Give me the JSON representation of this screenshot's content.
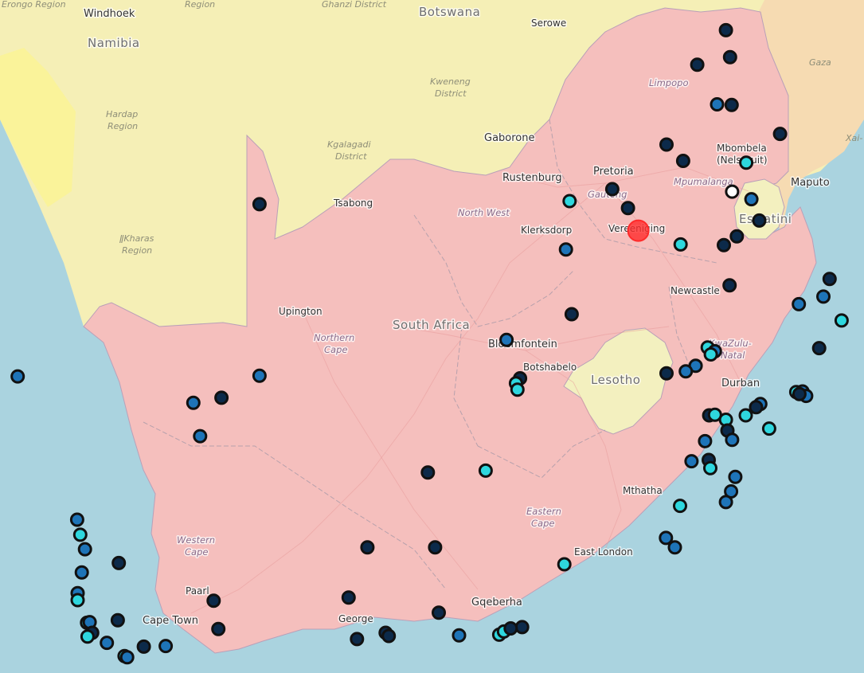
{
  "colors": {
    "sea": "#aad3df",
    "neighbor": "#f5efb6",
    "south_africa": "#f5bfbd",
    "lesotho": "#f3f0bf",
    "mozambique": "#f6dbb2",
    "desert": "#faf39a",
    "station_dark": "#0c2a4a",
    "station_blue": "#1e74b8",
    "station_cyan": "#2ed7de",
    "station_white": "#ffffff",
    "selected": "#ff2a2a"
  },
  "countries": {
    "south_africa": "South Africa",
    "botswana": "Botswana",
    "namibia": "Namibia",
    "lesotho": "Lesotho",
    "eswatini": "Eswatini"
  },
  "regions": {
    "erongo": "Erongo Region",
    "region_top": "Region",
    "ghanzi": "Ghanzi District",
    "kweneng_1": "Kweneng",
    "kweneng_2": "District",
    "hardap_1": "Hardap",
    "hardap_2": "Region",
    "kgalagadi_1": "Kgalagadi",
    "kgalagadi_2": "District",
    "karas_1": "ǁKharas",
    "karas_2": "Region",
    "gaza": "Gaza",
    "xai": "Xai-",
    "limpopo": "Limpopo",
    "mpumalanga": "Mpumalanga",
    "gauteng": "Gauteng",
    "north_west": "North West",
    "northern_cape_1": "Northern",
    "northern_cape_2": "Cape",
    "kzn_1": "KwaZulu-",
    "kzn_2": "Natal",
    "eastern_cape_1": "Eastern",
    "eastern_cape_2": "Cape",
    "western_cape_1": "Western",
    "western_cape_2": "Cape"
  },
  "cities": {
    "windhoek": "Windhoek",
    "namibia_label": "Namibia",
    "serowe": "Serowe",
    "gaborone": "Gaborone",
    "tsabong": "Tsabong",
    "rustenburg": "Rustenburg",
    "pretoria": "Pretoria",
    "mbombela_1": "Mbombela",
    "mbombela_2": "(Nelspruit)",
    "maputo": "Maputo",
    "klerksdorp": "Klerksdorp",
    "vereeniging": "Vereeniging",
    "newcastle": "Newcastle",
    "upington": "Upington",
    "bloemfontein": "Bloemfontein",
    "botshabelo": "Botshabelo",
    "durban": "Durban",
    "mthatha": "Mthatha",
    "east_london": "East London",
    "gqeberha": "Gqeberha",
    "george": "George",
    "paarl": "Paarl",
    "cape_town": "Cape Town"
  },
  "stations": [
    {
      "lon": 30.33,
      "lat": -22.43,
      "type": "dark"
    },
    {
      "lon": 29.78,
      "lat": -22.98,
      "type": "dark"
    },
    {
      "lon": 30.41,
      "lat": -22.86,
      "type": "dark"
    },
    {
      "lon": 30.16,
      "lat": -23.61,
      "type": "blue"
    },
    {
      "lon": 30.44,
      "lat": -23.62,
      "type": "dark"
    },
    {
      "lon": 29.19,
      "lat": -24.25,
      "type": "dark"
    },
    {
      "lon": 29.51,
      "lat": -24.51,
      "type": "dark"
    },
    {
      "lon": 31.37,
      "lat": -24.08,
      "type": "dark"
    },
    {
      "lon": 30.72,
      "lat": -24.54,
      "type": "cyan"
    },
    {
      "lon": 28.15,
      "lat": -24.96,
      "type": "dark"
    },
    {
      "lon": 30.45,
      "lat": -25.0,
      "type": "white"
    },
    {
      "lon": 30.82,
      "lat": -25.12,
      "type": "blue"
    },
    {
      "lon": 27.33,
      "lat": -25.15,
      "type": "cyan"
    },
    {
      "lon": 28.45,
      "lat": -25.26,
      "type": "dark"
    },
    {
      "lon": 30.97,
      "lat": -25.46,
      "type": "dark"
    },
    {
      "lon": 21.38,
      "lat": -25.2,
      "type": "dark"
    },
    {
      "lon": 28.65,
      "lat": -25.62,
      "type": "selected"
    },
    {
      "lon": 29.46,
      "lat": -25.84,
      "type": "cyan"
    },
    {
      "lon": 30.54,
      "lat": -25.71,
      "type": "dark"
    },
    {
      "lon": 30.29,
      "lat": -25.85,
      "type": "dark"
    },
    {
      "lon": 27.26,
      "lat": -25.92,
      "type": "blue"
    },
    {
      "lon": 32.32,
      "lat": -26.39,
      "type": "dark"
    },
    {
      "lon": 30.4,
      "lat": -26.49,
      "type": "dark"
    },
    {
      "lon": 32.2,
      "lat": -26.67,
      "type": "blue"
    },
    {
      "lon": 31.73,
      "lat": -26.79,
      "type": "blue"
    },
    {
      "lon": 27.37,
      "lat": -26.95,
      "type": "dark"
    },
    {
      "lon": 32.55,
      "lat": -27.05,
      "type": "cyan"
    },
    {
      "lon": 26.12,
      "lat": -27.36,
      "type": "blue"
    },
    {
      "lon": 29.98,
      "lat": -27.48,
      "type": "cyan"
    },
    {
      "lon": 30.12,
      "lat": -27.54,
      "type": "blue"
    },
    {
      "lon": 30.04,
      "lat": -27.59,
      "type": "cyan"
    },
    {
      "lon": 32.12,
      "lat": -27.49,
      "type": "dark"
    },
    {
      "lon": 29.75,
      "lat": -27.77,
      "type": "blue"
    },
    {
      "lon": 29.56,
      "lat": -27.86,
      "type": "blue"
    },
    {
      "lon": 29.19,
      "lat": -27.89,
      "type": "dark"
    },
    {
      "lon": 16.74,
      "lat": -27.94,
      "type": "blue"
    },
    {
      "lon": 21.38,
      "lat": -27.93,
      "type": "blue"
    },
    {
      "lon": 26.38,
      "lat": -27.97,
      "type": "dark"
    },
    {
      "lon": 26.3,
      "lat": -28.05,
      "type": "cyan"
    },
    {
      "lon": 26.33,
      "lat": -28.15,
      "type": "cyan"
    },
    {
      "lon": 31.68,
      "lat": -28.19,
      "type": "cyan"
    },
    {
      "lon": 31.8,
      "lat": -28.18,
      "type": "blue"
    },
    {
      "lon": 31.87,
      "lat": -28.25,
      "type": "blue"
    },
    {
      "lon": 31.74,
      "lat": -28.22,
      "type": "dark"
    },
    {
      "lon": 20.65,
      "lat": -28.28,
      "type": "dark"
    },
    {
      "lon": 20.11,
      "lat": -28.36,
      "type": "blue"
    },
    {
      "lon": 30.99,
      "lat": -28.38,
      "type": "blue"
    },
    {
      "lon": 30.91,
      "lat": -28.43,
      "type": "dark"
    },
    {
      "lon": 30.01,
      "lat": -28.56,
      "type": "dark"
    },
    {
      "lon": 30.12,
      "lat": -28.55,
      "type": "cyan"
    },
    {
      "lon": 30.33,
      "lat": -28.63,
      "type": "cyan"
    },
    {
      "lon": 30.71,
      "lat": -28.56,
      "type": "cyan"
    },
    {
      "lon": 30.36,
      "lat": -28.8,
      "type": "dark"
    },
    {
      "lon": 31.16,
      "lat": -28.77,
      "type": "cyan"
    },
    {
      "lon": 20.24,
      "lat": -28.89,
      "type": "blue"
    },
    {
      "lon": 30.45,
      "lat": -28.95,
      "type": "blue"
    },
    {
      "lon": 29.93,
      "lat": -28.97,
      "type": "blue"
    },
    {
      "lon": 29.67,
      "lat": -29.29,
      "type": "blue"
    },
    {
      "lon": 30.0,
      "lat": -29.27,
      "type": "dark"
    },
    {
      "lon": 30.03,
      "lat": -29.4,
      "type": "cyan"
    },
    {
      "lon": 24.61,
      "lat": -29.47,
      "type": "dark"
    },
    {
      "lon": 25.72,
      "lat": -29.44,
      "type": "cyan"
    },
    {
      "lon": 30.51,
      "lat": -29.54,
      "type": "blue"
    },
    {
      "lon": 30.43,
      "lat": -29.77,
      "type": "blue"
    },
    {
      "lon": 30.33,
      "lat": -29.94,
      "type": "blue"
    },
    {
      "lon": 29.45,
      "lat": -30.0,
      "type": "cyan"
    },
    {
      "lon": 17.88,
      "lat": -30.22,
      "type": "blue"
    },
    {
      "lon": 17.94,
      "lat": -30.46,
      "type": "cyan"
    },
    {
      "lon": 29.18,
      "lat": -30.51,
      "type": "blue"
    },
    {
      "lon": 23.45,
      "lat": -30.66,
      "type": "dark"
    },
    {
      "lon": 24.75,
      "lat": -30.66,
      "type": "dark"
    },
    {
      "lon": 29.35,
      "lat": -30.66,
      "type": "blue"
    },
    {
      "lon": 18.03,
      "lat": -30.69,
      "type": "blue"
    },
    {
      "lon": 18.68,
      "lat": -30.91,
      "type": "dark"
    },
    {
      "lon": 27.23,
      "lat": -30.93,
      "type": "cyan"
    },
    {
      "lon": 17.97,
      "lat": -31.06,
      "type": "blue"
    },
    {
      "lon": 17.89,
      "lat": -31.39,
      "type": "blue"
    },
    {
      "lon": 17.89,
      "lat": -31.5,
      "type": "cyan"
    },
    {
      "lon": 23.09,
      "lat": -31.46,
      "type": "dark"
    },
    {
      "lon": 20.5,
      "lat": -31.51,
      "type": "dark"
    },
    {
      "lon": 24.82,
      "lat": -31.7,
      "type": "dark"
    },
    {
      "lon": 26.42,
      "lat": -31.93,
      "type": "dark"
    },
    {
      "lon": 18.66,
      "lat": -31.82,
      "type": "dark"
    },
    {
      "lon": 18.07,
      "lat": -31.86,
      "type": "cyan"
    },
    {
      "lon": 18.12,
      "lat": -31.85,
      "type": "blue"
    },
    {
      "lon": 20.59,
      "lat": -31.96,
      "type": "dark"
    },
    {
      "lon": 23.8,
      "lat": -32.02,
      "type": "dark"
    },
    {
      "lon": 25.98,
      "lat": -32.05,
      "type": "cyan"
    },
    {
      "lon": 26.07,
      "lat": -32.0,
      "type": "cyan"
    },
    {
      "lon": 26.2,
      "lat": -31.95,
      "type": "dark"
    },
    {
      "lon": 25.21,
      "lat": -32.06,
      "type": "blue"
    },
    {
      "lon": 23.86,
      "lat": -32.07,
      "type": "dark"
    },
    {
      "lon": 18.17,
      "lat": -32.02,
      "type": "dark"
    },
    {
      "lon": 18.08,
      "lat": -32.08,
      "type": "cyan"
    },
    {
      "lon": 23.25,
      "lat": -32.12,
      "type": "dark"
    },
    {
      "lon": 18.45,
      "lat": -32.18,
      "type": "blue"
    },
    {
      "lon": 19.16,
      "lat": -32.24,
      "type": "dark"
    },
    {
      "lon": 19.58,
      "lat": -32.23,
      "type": "blue"
    },
    {
      "lon": 18.79,
      "lat": -32.39,
      "type": "cyan"
    },
    {
      "lon": 18.84,
      "lat": -32.41,
      "type": "blue"
    }
  ]
}
